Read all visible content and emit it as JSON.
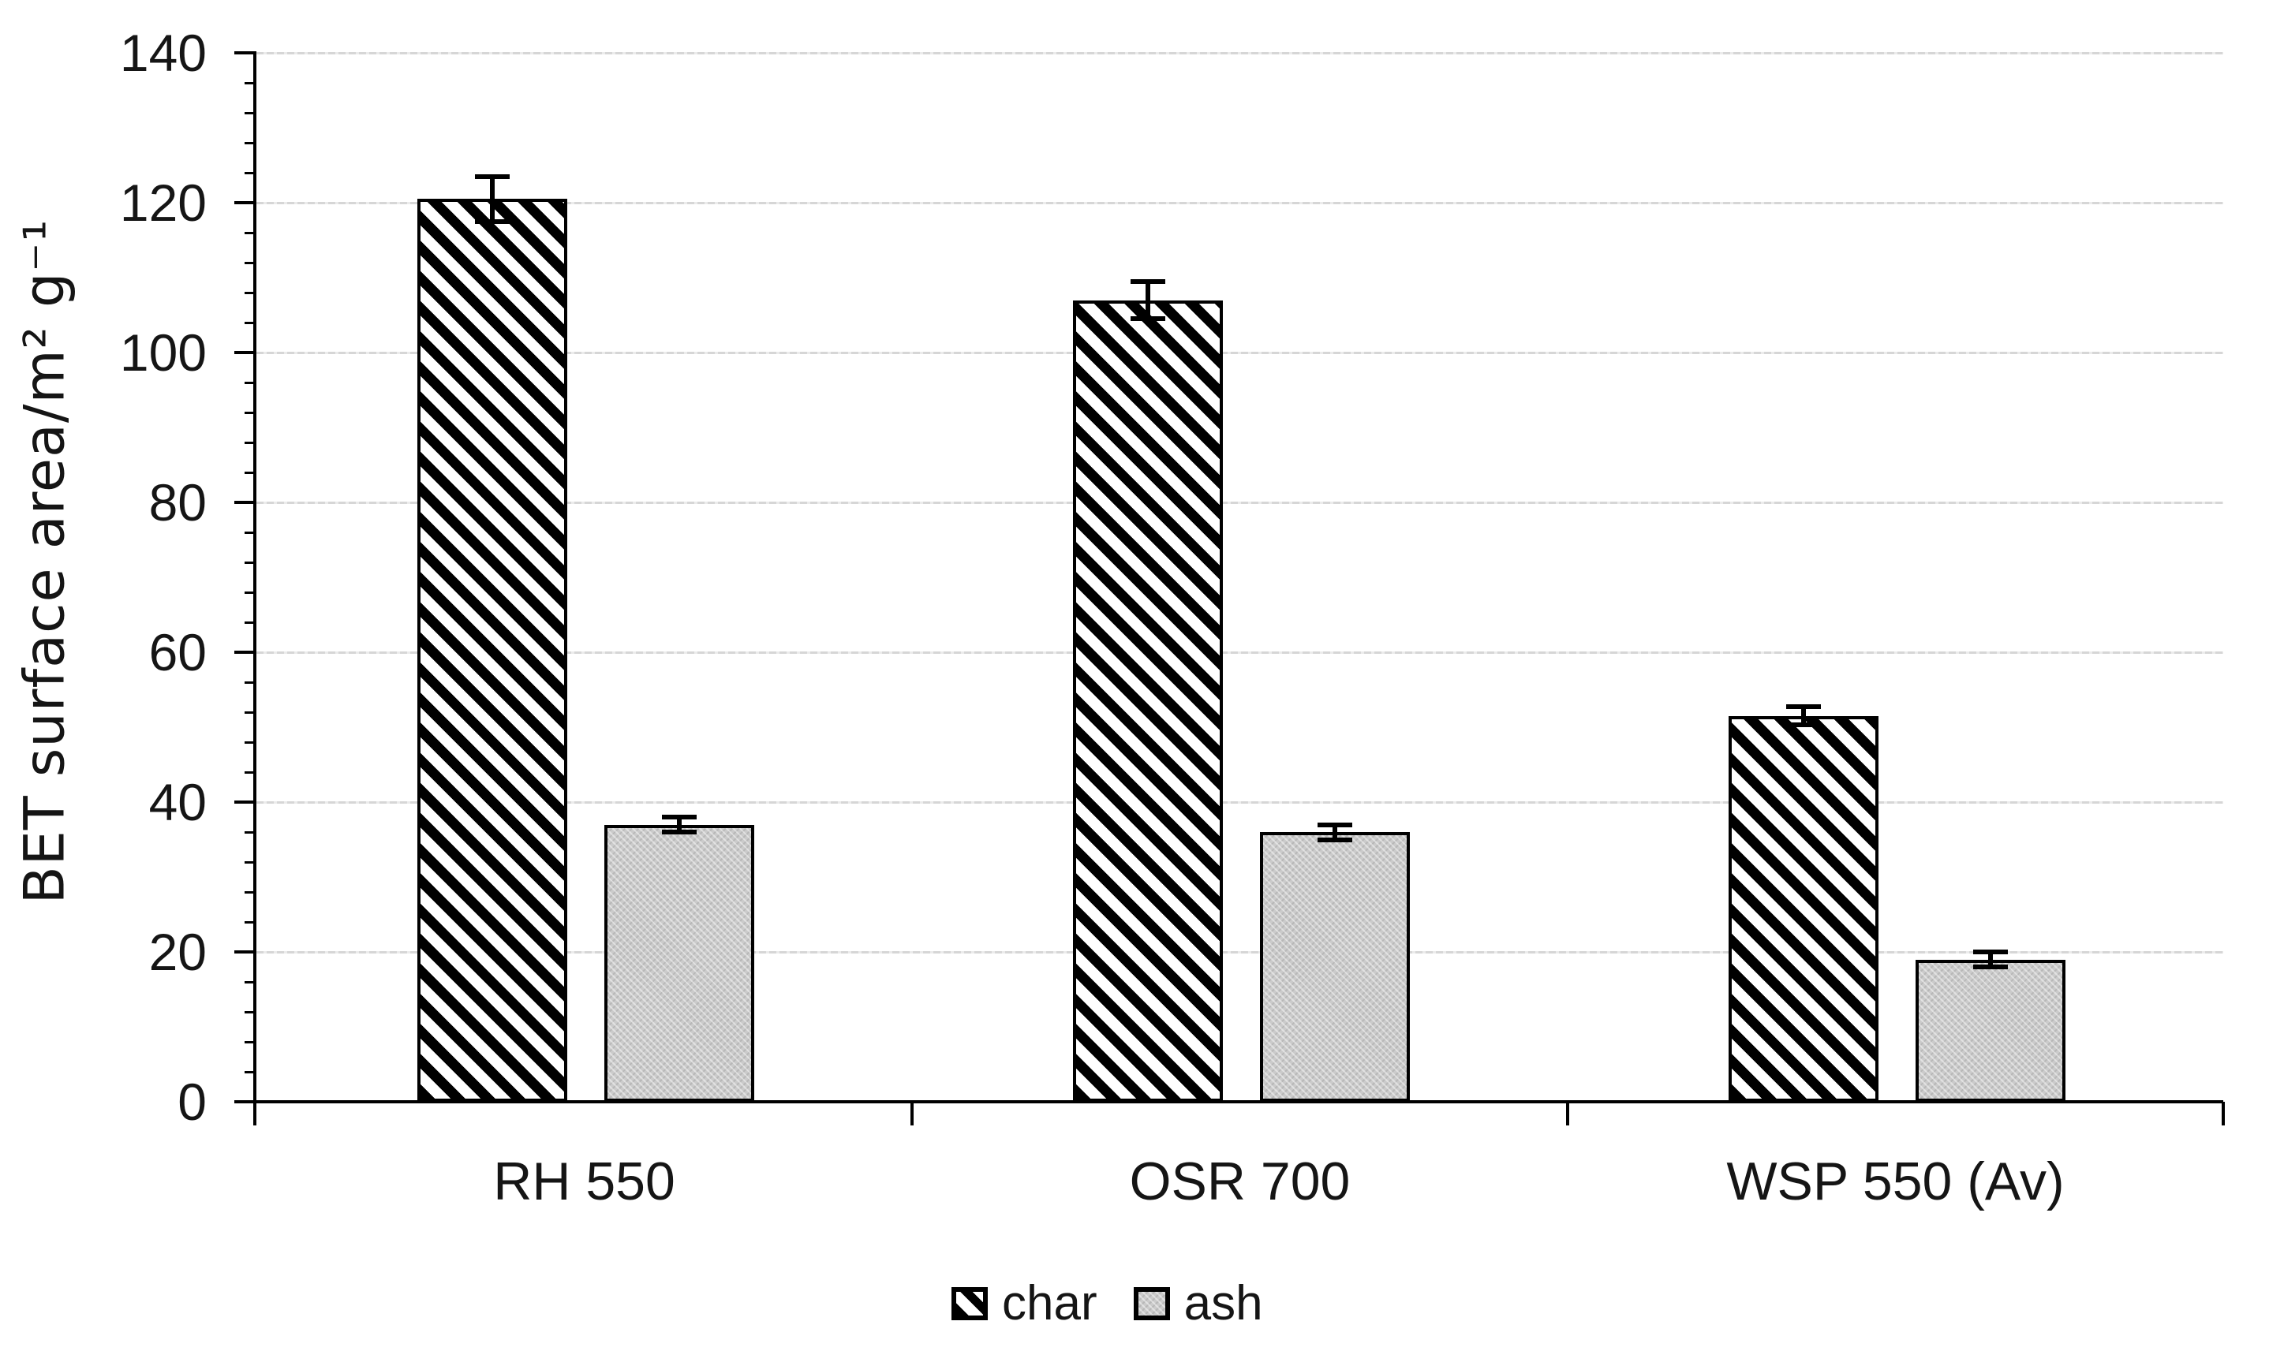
{
  "figure": {
    "background": "#ffffff",
    "axis_color": "#000000",
    "grid_color": "#d9d9d9",
    "ash_fill_color": "#cbcbcb",
    "hatch_color": "#000000"
  },
  "legend": {
    "char_label": "char",
    "ash_label": "ash"
  },
  "chart_data": {
    "type": "bar",
    "title": "",
    "xlabel": "",
    "ylabel": "BET surface area/m² g⁻¹",
    "categories": [
      "RH 550",
      "OSR 700",
      "WSP 550 (Av)"
    ],
    "series": [
      {
        "name": "char",
        "style": "black-diagonal-hatch",
        "values": [
          120.5,
          107,
          51.5
        ],
        "errors": [
          3,
          2.5,
          1.2
        ]
      },
      {
        "name": "ash",
        "style": "solid-gray",
        "values": [
          37,
          36,
          19
        ],
        "errors": [
          1,
          1,
          1
        ]
      }
    ],
    "ylim": [
      0,
      140
    ],
    "ytick_major_step": 20,
    "ytick_minor_step": 4,
    "ytick_labels": [
      "0",
      "20",
      "40",
      "60",
      "80",
      "100",
      "120",
      "140"
    ],
    "grid": "horizontal-major-dotted",
    "legend_position": "bottom-center",
    "error_bars": "symmetric-caps"
  }
}
